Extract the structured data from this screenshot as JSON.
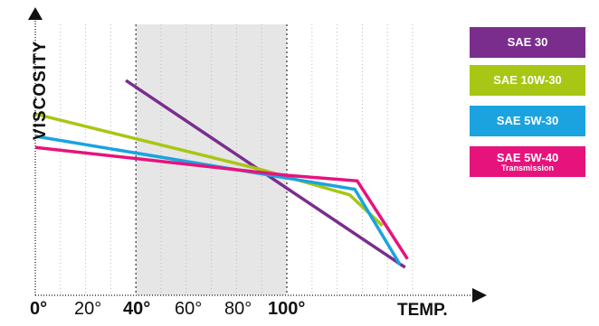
{
  "chart_data": {
    "type": "line",
    "ylabel": "VISCOSITY",
    "xlabel": "TEMP.",
    "xlim": [
      0,
      150
    ],
    "x_ticks": [
      {
        "value": 0,
        "label": "0°",
        "bold": true
      },
      {
        "value": 20,
        "label": "20°",
        "bold": false
      },
      {
        "value": 40,
        "label": "40°",
        "bold": true
      },
      {
        "value": 60,
        "label": "60°",
        "bold": false
      },
      {
        "value": 80,
        "label": "80°",
        "bold": false
      },
      {
        "value": 100,
        "label": "100°",
        "bold": true
      }
    ],
    "grid": true,
    "highlight_range": [
      40,
      100
    ],
    "legend_position": "right",
    "series": [
      {
        "name": "SAE 30",
        "color": "#7b2d8e",
        "x": [
          36,
          147
        ],
        "y": [
          0.77,
          0.1
        ]
      },
      {
        "name": "SAE 10W-30",
        "color": "#a8c614",
        "x": [
          0,
          90,
          125,
          138
        ],
        "y": [
          0.65,
          0.45,
          0.36,
          0.25
        ]
      },
      {
        "name": "SAE 5W-30",
        "color": "#1aa3df",
        "x": [
          0,
          100,
          127,
          145
        ],
        "y": [
          0.57,
          0.42,
          0.38,
          0.11
        ]
      },
      {
        "name": "SAE 5W-40",
        "subname": "Transmission",
        "color": "#e6137d",
        "x": [
          0,
          100,
          128,
          148
        ],
        "y": [
          0.53,
          0.43,
          0.41,
          0.13
        ]
      }
    ]
  }
}
